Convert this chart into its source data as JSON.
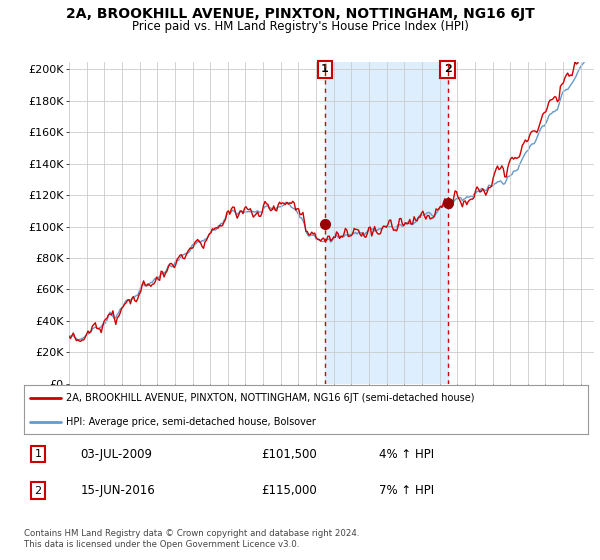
{
  "title": "2A, BROOKHILL AVENUE, PINXTON, NOTTINGHAM, NG16 6JT",
  "subtitle": "Price paid vs. HM Land Registry's House Price Index (HPI)",
  "ylabel_ticks": [
    "£0",
    "£20K",
    "£40K",
    "£60K",
    "£80K",
    "£100K",
    "£120K",
    "£140K",
    "£160K",
    "£180K",
    "£200K"
  ],
  "ytick_vals": [
    0,
    20000,
    40000,
    60000,
    80000,
    100000,
    120000,
    140000,
    160000,
    180000,
    200000
  ],
  "ylim": [
    0,
    205000
  ],
  "xlim_start": 1995.0,
  "xlim_end": 2024.75,
  "line1_color": "#cc0000",
  "line2_color": "#6699cc",
  "shade_color": "#ddeeff",
  "sale1_x": 2009.5,
  "sale1_y": 101500,
  "sale1_label": "1",
  "sale2_x": 2016.45,
  "sale2_y": 115000,
  "sale2_label": "2",
  "legend_line1": "2A, BROOKHILL AVENUE, PINXTON, NOTTINGHAM, NG16 6JT (semi-detached house)",
  "legend_line2": "HPI: Average price, semi-detached house, Bolsover",
  "annotation1_num": "1",
  "annotation1_date": "03-JUL-2009",
  "annotation1_price": "£101,500",
  "annotation1_hpi": "4% ↑ HPI",
  "annotation2_num": "2",
  "annotation2_date": "15-JUN-2016",
  "annotation2_price": "£115,000",
  "annotation2_hpi": "7% ↑ HPI",
  "footer": "Contains HM Land Registry data © Crown copyright and database right 2024.\nThis data is licensed under the Open Government Licence v3.0.",
  "bg_color": "#ffffff",
  "plot_bg_color": "#ffffff",
  "grid_color": "#cccccc",
  "vline_color": "#cc0000"
}
